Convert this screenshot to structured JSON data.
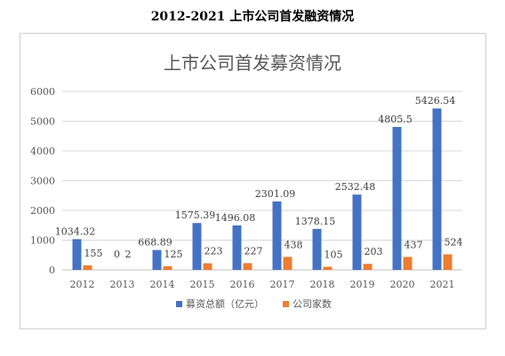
{
  "page": {
    "heading": "2012-2021 上市公司首发融资情况"
  },
  "chart_data": {
    "type": "bar",
    "title": "上市公司首发募资情况",
    "categories": [
      "2012",
      "2013",
      "2014",
      "2015",
      "2016",
      "2017",
      "2018",
      "2019",
      "2020",
      "2021"
    ],
    "series": [
      {
        "name": "募资总额（亿元）",
        "color": "#4472c4",
        "values": [
          1034.32,
          0,
          668.89,
          1575.39,
          1496.08,
          2301.09,
          1378.15,
          2532.48,
          4805.5,
          5426.54
        ],
        "labels": [
          "1034.32",
          "0",
          "668.89",
          "1575.39",
          "1496.08",
          "2301.09",
          "1378.15",
          "2532.48",
          "4805.5",
          "5426.54"
        ]
      },
      {
        "name": "公司家数",
        "color": "#ed7d31",
        "values": [
          155,
          2,
          125,
          223,
          227,
          438,
          105,
          203,
          437,
          524
        ],
        "labels": [
          "155",
          "2",
          "125",
          "223",
          "227",
          "438",
          "105",
          "203",
          "437",
          "524"
        ]
      }
    ],
    "ylim": [
      0,
      6000
    ],
    "yticks": [
      "0",
      "1000",
      "2000",
      "3000",
      "4000",
      "5000",
      "6000"
    ],
    "grid": true,
    "legend_position": "bottom"
  }
}
